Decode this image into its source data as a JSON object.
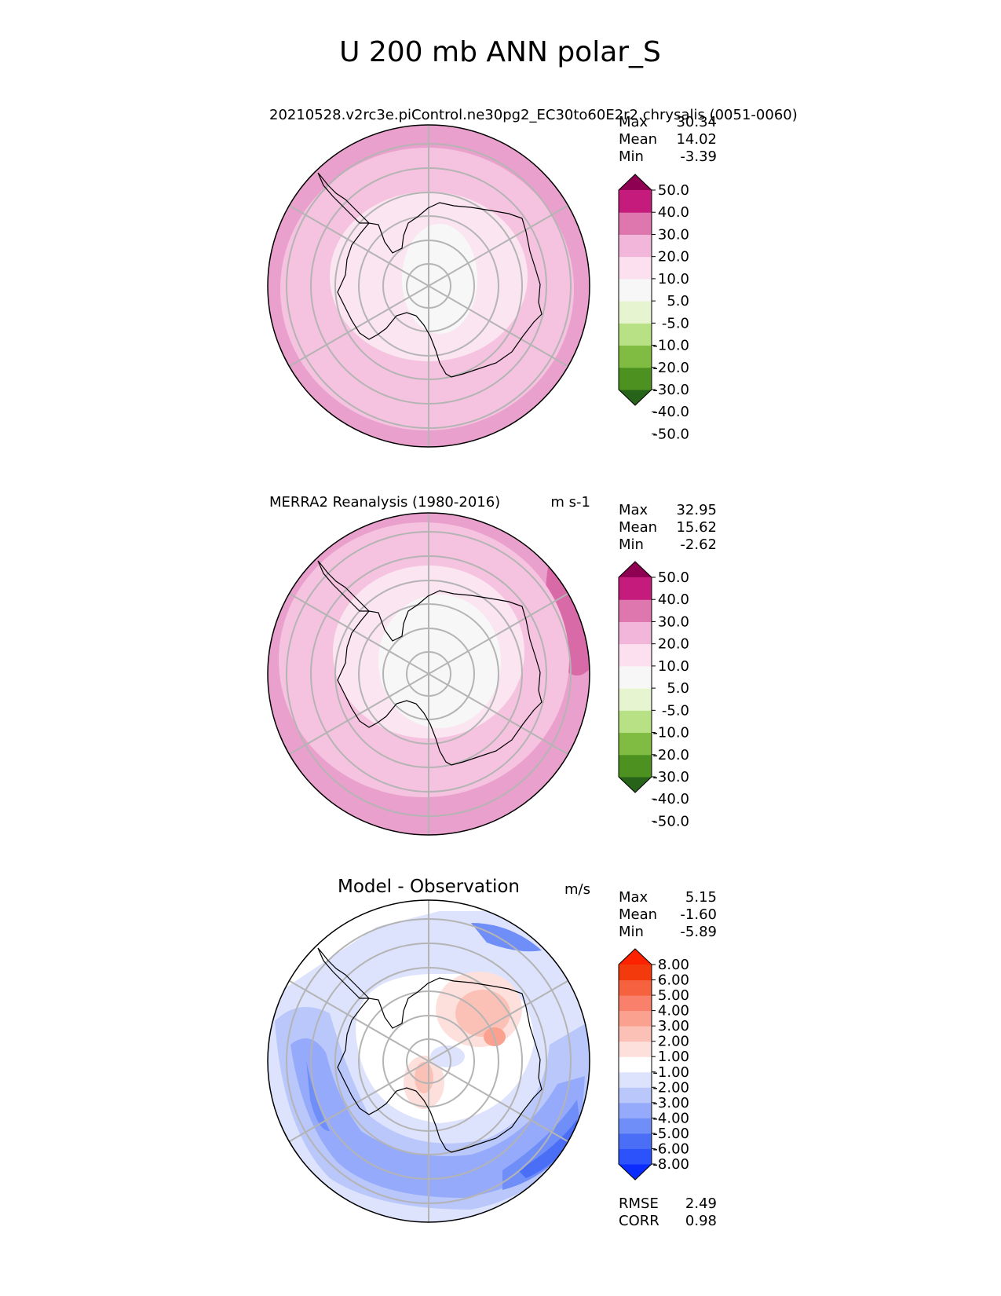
{
  "chart_data": {
    "type": "heatmap",
    "title": "U 200 mb ANN polar_S",
    "panels": [
      {
        "id": "test",
        "title_left": "20210528.v2rc3e.piControl.ne30pg2_EC30to60E2r2.chrysalis (0051-0060)",
        "title_right": "",
        "stats": [
          {
            "label": "Max",
            "value": "30.34"
          },
          {
            "label": "Mean",
            "value": "14.02"
          },
          {
            "label": "Min",
            "value": "-3.39"
          }
        ],
        "colorbar": {
          "colors": [
            "#276419",
            "#4d9221",
            "#7fbc41",
            "#b8e186",
            "#e6f5d0",
            "#f7f7f7",
            "#fde0ef",
            "#f1b6da",
            "#de77ae",
            "#c51b7d",
            "#8e0152"
          ],
          "levels": [
            "-50.0",
            "-40.0",
            "-30.0",
            "-20.0",
            "-10.0",
            "-5.0",
            "5.0",
            "10.0",
            "20.0",
            "30.0",
            "40.0",
            "50.0"
          ],
          "tick_labels": [
            "50.0",
            "40.0",
            "30.0",
            "20.0",
            "10.0",
            "5.0",
            "-5.0",
            "-10.0",
            "-20.0",
            "-30.0",
            "-40.0",
            "-50.0"
          ]
        },
        "field_rings": [
          {
            "level": "20 to 30",
            "color": "#eaa0cc"
          },
          {
            "level": "10 to 20",
            "color": "#f5c3df"
          },
          {
            "level": "5 to 10",
            "color": "#fbe5f0"
          },
          {
            "level": "-5 to 5",
            "color": "#f7f7f7"
          }
        ]
      },
      {
        "id": "reference",
        "title_left": "MERRA2 Reanalysis (1980-2016)",
        "title_right": "m s-1",
        "stats": [
          {
            "label": "Max",
            "value": "32.95"
          },
          {
            "label": "Mean",
            "value": "15.62"
          },
          {
            "label": "Min",
            "value": "-2.62"
          }
        ],
        "colorbar": {
          "colors": [
            "#276419",
            "#4d9221",
            "#7fbc41",
            "#b8e186",
            "#e6f5d0",
            "#f7f7f7",
            "#fde0ef",
            "#f1b6da",
            "#de77ae",
            "#c51b7d",
            "#8e0152"
          ],
          "levels": [
            "-50.0",
            "-40.0",
            "-30.0",
            "-20.0",
            "-10.0",
            "-5.0",
            "5.0",
            "10.0",
            "20.0",
            "30.0",
            "40.0",
            "50.0"
          ],
          "tick_labels": [
            "50.0",
            "40.0",
            "30.0",
            "20.0",
            "10.0",
            "5.0",
            "-5.0",
            "-10.0",
            "-20.0",
            "-30.0",
            "-40.0",
            "-50.0"
          ]
        },
        "field_rings": [
          {
            "level": "30 to 40",
            "color": "#d96aa8"
          },
          {
            "level": "20 to 30",
            "color": "#eaa0cc"
          },
          {
            "level": "10 to 20",
            "color": "#f5c3df"
          },
          {
            "level": "5 to 10",
            "color": "#fbe5f0"
          },
          {
            "level": "-5 to 5",
            "color": "#f7f7f7"
          }
        ]
      },
      {
        "id": "diff",
        "title_center": "Model - Observation",
        "title_right": "m/s",
        "stats": [
          {
            "label": "Max",
            "value": "5.15"
          },
          {
            "label": "Mean",
            "value": "-1.60"
          },
          {
            "label": "Min",
            "value": "-5.89"
          }
        ],
        "colorbar": {
          "colors": [
            "#0a2cff",
            "#2c52fb",
            "#4a6ef6",
            "#6f8ef7",
            "#95aafa",
            "#b9c7fb",
            "#dde3fd",
            "#ffffff",
            "#fde0dc",
            "#fcc1b6",
            "#fba190",
            "#f9816b",
            "#f6613f",
            "#f33a0c",
            "#fe2300"
          ],
          "levels": [
            "-8.00",
            "-6.00",
            "-5.00",
            "-4.00",
            "-3.00",
            "-2.00",
            "-1.00",
            "1.00",
            "2.00",
            "3.00",
            "4.00",
            "5.00",
            "6.00",
            "8.00"
          ],
          "tick_labels": [
            "8.00",
            "6.00",
            "5.00",
            "4.00",
            "3.00",
            "2.00",
            "1.00",
            "-1.00",
            "-2.00",
            "-3.00",
            "-4.00",
            "-5.00",
            "-6.00",
            "-8.00"
          ]
        },
        "footer_stats": [
          {
            "label": "RMSE",
            "value": "2.49"
          },
          {
            "label": "CORR",
            "value": "0.98"
          }
        ]
      }
    ]
  }
}
